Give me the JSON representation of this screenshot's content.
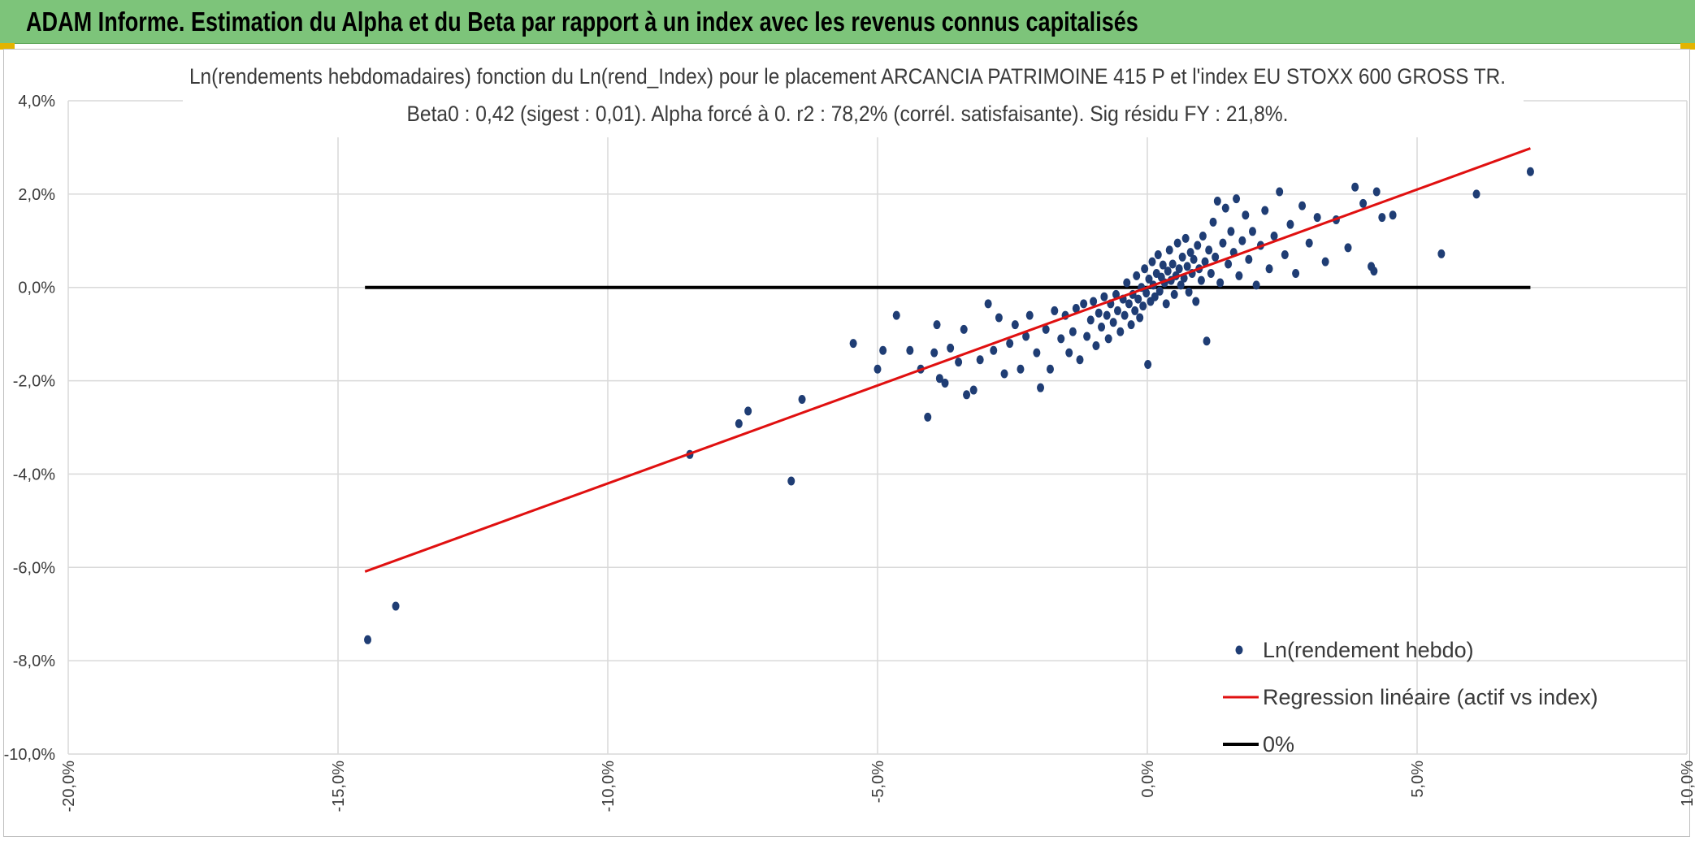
{
  "header": {
    "title": "ADAM Informe. Estimation du Alpha et du Beta par rapport à un index avec les revenus connus capitalisés"
  },
  "colors": {
    "header_bg": "#7dc47a",
    "points": "#1f3d74",
    "regression": "#e01010",
    "zero_line": "#000000",
    "grid": "#d9d9d9"
  },
  "chart_data": {
    "type": "scatter",
    "title": "Ln(rendements hebdomadaires) fonction du Ln(rend_Index) pour le placement ARCANCIA PATRIMOINE 415 P et l'index EU STOXX 600 GROSS TR.",
    "subtitle": "Beta0 : 0,42 (sigest : 0,01). Alpha forcé à 0. r2 : 78,2% (corrél. satisfaisante). Sig résidu FY : 21,8%.",
    "xlabel": "",
    "ylabel": "",
    "xlim": [
      -0.2,
      0.1
    ],
    "ylim": [
      -0.1,
      0.04
    ],
    "x_ticks": [
      "-20,0%",
      "-15,0%",
      "-10,0%",
      "-5,0%",
      "0,0%",
      "5,0%",
      "10,0%"
    ],
    "y_ticks": [
      "4,0%",
      "2,0%",
      "0,0%",
      "-2,0%",
      "-4,0%",
      "-6,0%",
      "-8,0%",
      "-10,0%"
    ],
    "grid": true,
    "legend_position": "bottom-right",
    "series": [
      {
        "name": "Ln(rendement hebdo)",
        "kind": "points",
        "points": [
          [
            -0.1445,
            -0.0755
          ],
          [
            -0.1393,
            -0.0683
          ],
          [
            -0.0848,
            -0.0358
          ],
          [
            -0.0757,
            -0.0292
          ],
          [
            -0.074,
            -0.0265
          ],
          [
            -0.066,
            -0.0415
          ],
          [
            -0.064,
            -0.024
          ],
          [
            -0.0545,
            -0.012
          ],
          [
            -0.05,
            -0.0175
          ],
          [
            -0.049,
            -0.0135
          ],
          [
            -0.0465,
            -0.006
          ],
          [
            -0.044,
            -0.0135
          ],
          [
            -0.042,
            -0.0175
          ],
          [
            -0.0407,
            -0.0278
          ],
          [
            -0.0395,
            -0.014
          ],
          [
            -0.039,
            -0.008
          ],
          [
            -0.0385,
            -0.0195
          ],
          [
            -0.0375,
            -0.0205
          ],
          [
            -0.0365,
            -0.013
          ],
          [
            -0.035,
            -0.016
          ],
          [
            -0.034,
            -0.009
          ],
          [
            -0.0335,
            -0.023
          ],
          [
            -0.0322,
            -0.022
          ],
          [
            -0.031,
            -0.0155
          ],
          [
            -0.0295,
            -0.0035
          ],
          [
            -0.0285,
            -0.0135
          ],
          [
            -0.0275,
            -0.0065
          ],
          [
            -0.0265,
            -0.0185
          ],
          [
            -0.0255,
            -0.012
          ],
          [
            -0.0245,
            -0.008
          ],
          [
            -0.0235,
            -0.0175
          ],
          [
            -0.0225,
            -0.0105
          ],
          [
            -0.0218,
            -0.006
          ],
          [
            -0.0205,
            -0.014
          ],
          [
            -0.0198,
            -0.0215
          ],
          [
            -0.0188,
            -0.009
          ],
          [
            -0.018,
            -0.0175
          ],
          [
            -0.0172,
            -0.005
          ],
          [
            -0.016,
            -0.011
          ],
          [
            -0.0152,
            -0.006
          ],
          [
            -0.0145,
            -0.014
          ],
          [
            -0.0138,
            -0.0095
          ],
          [
            -0.0132,
            -0.0045
          ],
          [
            -0.0125,
            -0.0155
          ],
          [
            -0.0118,
            -0.0035
          ],
          [
            -0.0112,
            -0.0105
          ],
          [
            -0.0105,
            -0.007
          ],
          [
            -0.01,
            -0.003
          ],
          [
            -0.0095,
            -0.0125
          ],
          [
            -0.009,
            -0.0055
          ],
          [
            -0.0085,
            -0.0085
          ],
          [
            -0.008,
            -0.002
          ],
          [
            -0.0075,
            -0.006
          ],
          [
            -0.0072,
            -0.011
          ],
          [
            -0.0068,
            -0.0035
          ],
          [
            -0.0063,
            -0.0075
          ],
          [
            -0.0058,
            -0.0015
          ],
          [
            -0.0055,
            -0.005
          ],
          [
            -0.005,
            -0.0095
          ],
          [
            -0.0045,
            -0.0025
          ],
          [
            -0.0042,
            -0.006
          ],
          [
            -0.0038,
            0.001
          ],
          [
            -0.0034,
            -0.0035
          ],
          [
            -0.003,
            -0.008
          ],
          [
            -0.0027,
            -0.0015
          ],
          [
            -0.0023,
            -0.005
          ],
          [
            -0.002,
            0.0025
          ],
          [
            -0.0017,
            -0.0025
          ],
          [
            -0.0014,
            -0.0065
          ],
          [
            -0.0011,
            0.0
          ],
          [
            -0.0008,
            -0.004
          ],
          [
            -0.0005,
            0.004
          ],
          [
            -0.0002,
            -0.0012
          ],
          [
            0.0001,
            -0.0165
          ],
          [
            0.0003,
            0.0018
          ],
          [
            0.0006,
            -0.003
          ],
          [
            0.0009,
            0.0055
          ],
          [
            0.0011,
            0.0005
          ],
          [
            0.0014,
            -0.002
          ],
          [
            0.0017,
            0.003
          ],
          [
            0.002,
            0.007
          ],
          [
            0.0023,
            -0.0008
          ],
          [
            0.0026,
            0.0022
          ],
          [
            0.0029,
            0.0048
          ],
          [
            0.0032,
            0.001
          ],
          [
            0.0035,
            -0.0035
          ],
          [
            0.0038,
            0.0035
          ],
          [
            0.0041,
            0.008
          ],
          [
            0.0044,
            0.0015
          ],
          [
            0.0047,
            0.005
          ],
          [
            0.005,
            -0.0015
          ],
          [
            0.0053,
            0.0025
          ],
          [
            0.0056,
            0.0095
          ],
          [
            0.0059,
            0.004
          ],
          [
            0.0062,
            0.0005
          ],
          [
            0.0065,
            0.0065
          ],
          [
            0.0068,
            0.002
          ],
          [
            0.0071,
            0.0105
          ],
          [
            0.0074,
            0.0045
          ],
          [
            0.0077,
            -0.001
          ],
          [
            0.008,
            0.0075
          ],
          [
            0.0083,
            0.003
          ],
          [
            0.0086,
            0.006
          ],
          [
            0.009,
            -0.003
          ],
          [
            0.0093,
            0.009
          ],
          [
            0.0096,
            0.004
          ],
          [
            0.01,
            0.0015
          ],
          [
            0.0103,
            0.011
          ],
          [
            0.0107,
            0.0055
          ],
          [
            0.011,
            -0.0115
          ],
          [
            0.0114,
            0.008
          ],
          [
            0.0118,
            0.003
          ],
          [
            0.0122,
            0.014
          ],
          [
            0.0126,
            0.0065
          ],
          [
            0.013,
            0.0185
          ],
          [
            0.0135,
            0.001
          ],
          [
            0.014,
            0.0095
          ],
          [
            0.0145,
            0.017
          ],
          [
            0.015,
            0.005
          ],
          [
            0.0155,
            0.012
          ],
          [
            0.016,
            0.0075
          ],
          [
            0.0165,
            0.019
          ],
          [
            0.017,
            0.0025
          ],
          [
            0.0176,
            0.01
          ],
          [
            0.0182,
            0.0155
          ],
          [
            0.0188,
            0.006
          ],
          [
            0.0195,
            0.012
          ],
          [
            0.0202,
            0.0005
          ],
          [
            0.021,
            0.009
          ],
          [
            0.0218,
            0.0165
          ],
          [
            0.0226,
            0.004
          ],
          [
            0.0235,
            0.011
          ],
          [
            0.0245,
            0.0205
          ],
          [
            0.0255,
            0.007
          ],
          [
            0.0265,
            0.0135
          ],
          [
            0.0275,
            0.003
          ],
          [
            0.0287,
            0.0175
          ],
          [
            0.03,
            0.0095
          ],
          [
            0.0315,
            0.015
          ],
          [
            0.033,
            0.0055
          ],
          [
            0.035,
            0.0145
          ],
          [
            0.0372,
            0.0085
          ],
          [
            0.0385,
            0.0215
          ],
          [
            0.04,
            0.018
          ],
          [
            0.0415,
            0.0045
          ],
          [
            0.042,
            0.0035
          ],
          [
            0.0425,
            0.0205
          ],
          [
            0.0435,
            0.015
          ],
          [
            0.0455,
            0.0155
          ],
          [
            0.0545,
            0.0072
          ],
          [
            0.061,
            0.02
          ],
          [
            0.071,
            0.0248
          ]
        ]
      },
      {
        "name": "Regression linéaire (actif vs index)",
        "kind": "line",
        "points": [
          [
            -0.145,
            -0.0609
          ],
          [
            0.071,
            0.0298
          ]
        ]
      },
      {
        "name": "0%",
        "kind": "line",
        "points": [
          [
            -0.145,
            0.0
          ],
          [
            0.071,
            0.0
          ]
        ]
      }
    ]
  }
}
